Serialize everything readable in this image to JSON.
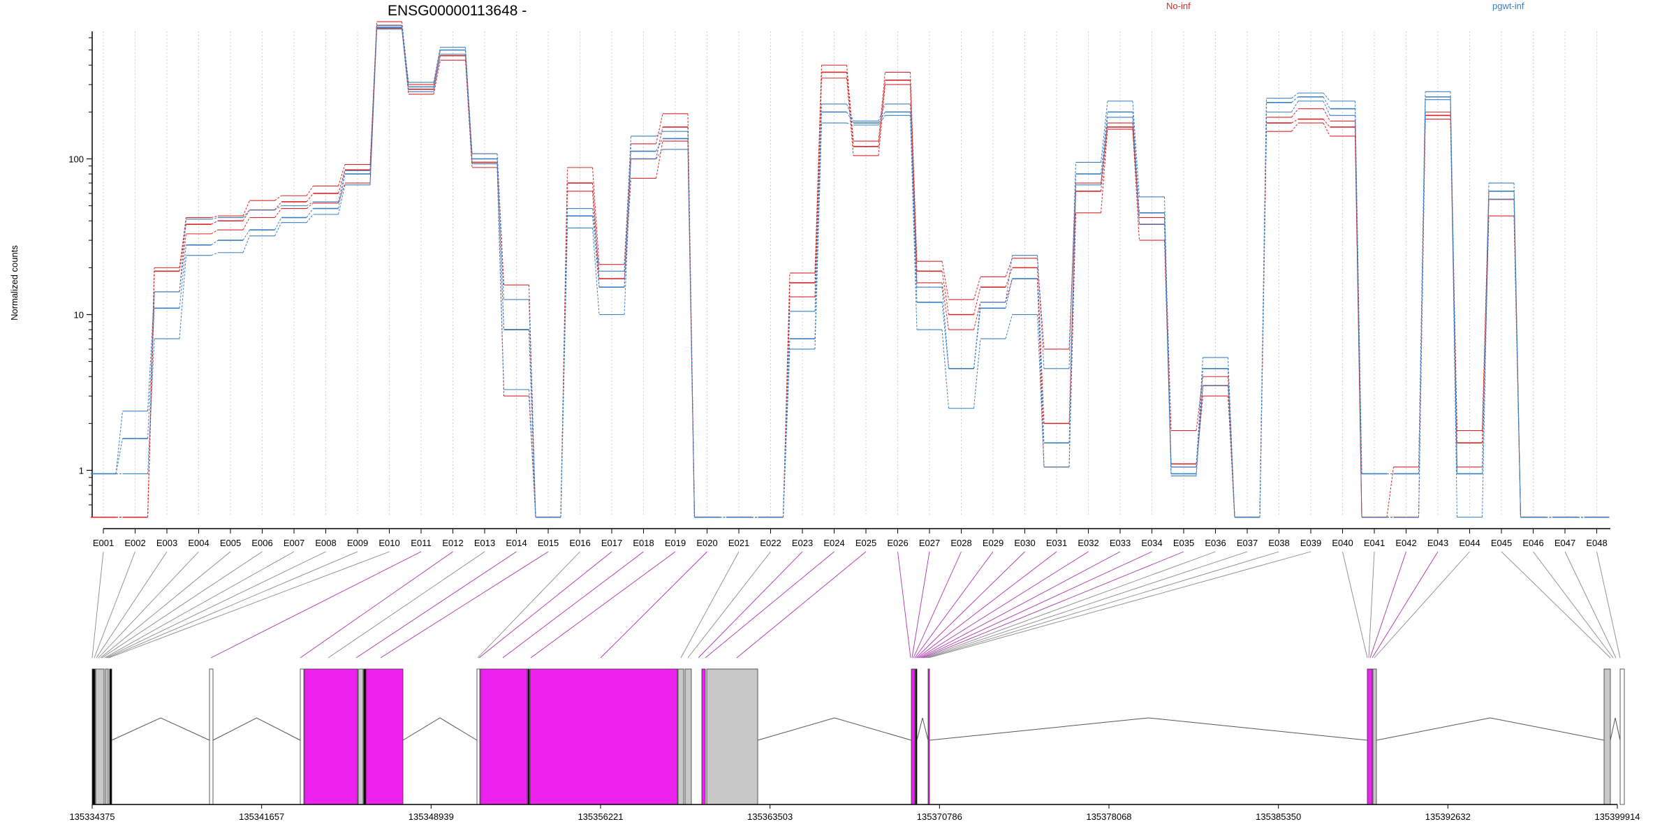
{
  "chart_data": {
    "type": "line",
    "title": "ENSG00000113648 -",
    "ylabel": "Normalized counts",
    "y_scale": "log",
    "y_ticks": [
      "1",
      "10",
      "100"
    ],
    "grid": "vertical dashed per exon",
    "legend_placement": "top",
    "categories": [
      "E001",
      "E002",
      "E003",
      "E004",
      "E005",
      "E006",
      "E007",
      "E008",
      "E009",
      "E010",
      "E011",
      "E012",
      "E013",
      "E014",
      "E015",
      "E016",
      "E017",
      "E018",
      "E019",
      "E020",
      "E021",
      "E022",
      "E023",
      "E024",
      "E025",
      "E026",
      "E027",
      "E028",
      "E029",
      "E030",
      "E031",
      "E032",
      "E033",
      "E034",
      "E035",
      "E036",
      "E037",
      "E038",
      "E039",
      "E040",
      "E041",
      "E042",
      "E043",
      "E044",
      "E045",
      "E046",
      "E047",
      "E048"
    ],
    "series": [
      {
        "name": "No-inf",
        "color": "#d62728",
        "values": [
          0.5,
          0.5,
          19,
          38,
          40,
          47,
          53,
          60,
          85,
          720,
          280,
          460,
          95,
          8,
          0.5,
          70,
          17,
          100,
          160,
          0.5,
          0.5,
          0.5,
          16,
          360,
          120,
          320,
          19,
          10,
          15,
          20,
          2,
          62,
          160,
          38,
          1.1,
          3.5,
          0.5,
          170,
          180,
          160,
          0.5,
          0.5,
          190,
          1.5,
          55,
          0.5,
          0.5,
          0.5
        ],
        "low": [
          0.5,
          0.5,
          14,
          33,
          35,
          42,
          48,
          52,
          70,
          690,
          260,
          430,
          88,
          3,
          0.5,
          62,
          15,
          75,
          130,
          0.5,
          0.5,
          0.5,
          13,
          330,
          105,
          300,
          16,
          8,
          12,
          17,
          1.05,
          45,
          155,
          30,
          1.05,
          3,
          0.5,
          150,
          170,
          140,
          0.5,
          0.5,
          180,
          1.05,
          43,
          0.5,
          0.5,
          0.5
        ],
        "high": [
          0.5,
          0.5,
          20,
          42,
          43,
          54,
          58,
          67,
          92,
          760,
          300,
          500,
          108,
          15.5,
          0.5,
          88,
          21,
          125,
          195,
          0.5,
          0.5,
          0.5,
          18.5,
          400,
          130,
          360,
          22,
          12.5,
          17.5,
          23,
          6,
          70,
          170,
          42,
          1.8,
          4,
          0.5,
          185,
          210,
          175,
          0.5,
          1.05,
          200,
          1.8,
          62,
          0.5,
          0.5,
          0.5
        ]
      },
      {
        "name": "pgwt-inf",
        "color": "#3a7fbf",
        "values": [
          0.95,
          1.6,
          11,
          28,
          30,
          35,
          42,
          48,
          80,
          700,
          290,
          500,
          100,
          8,
          0.5,
          43,
          15,
          112,
          135,
          0.5,
          0.5,
          0.5,
          7,
          200,
          170,
          200,
          12,
          4.5,
          11,
          17,
          1.5,
          80,
          200,
          45,
          0.95,
          4.5,
          0.5,
          230,
          250,
          210,
          0.95,
          0.95,
          250,
          0.95,
          62,
          0.5,
          0.5,
          0.5
        ],
        "low": [
          0.95,
          0.95,
          7,
          24,
          25,
          32,
          39,
          44,
          68,
          680,
          270,
          470,
          93,
          3.3,
          0.5,
          36,
          10,
          100,
          115,
          0.5,
          0.5,
          0.5,
          6,
          170,
          165,
          190,
          8,
          2.5,
          7,
          10,
          1.05,
          68,
          185,
          38,
          0.92,
          3.5,
          0.5,
          200,
          235,
          190,
          0.5,
          0.5,
          240,
          0.5,
          55,
          0.5,
          0.5,
          0.5
        ],
        "high": [
          0.95,
          2.4,
          14,
          41,
          42,
          47,
          50,
          53,
          84,
          720,
          310,
          520,
          108,
          12.5,
          0.5,
          48,
          19,
          140,
          150,
          0.5,
          0.5,
          0.5,
          10.5,
          225,
          175,
          225,
          15,
          4.5,
          12,
          24,
          4.5,
          95,
          235,
          57,
          1.05,
          5.3,
          0.5,
          245,
          265,
          235,
          0.95,
          0.95,
          270,
          0.95,
          70,
          0.5,
          0.5,
          0.5
        ]
      }
    ],
    "x_ticks": [
      "135334375",
      "135341657",
      "135348939",
      "135356221",
      "135363503",
      "135370786",
      "135378068",
      "135385350",
      "135392632",
      "135399914"
    ],
    "gene_model": {
      "range": [
        135334375,
        135399914
      ],
      "exon_feature_color": "#ee22ee",
      "intron_feature_color": "#c8c8c8"
    }
  }
}
